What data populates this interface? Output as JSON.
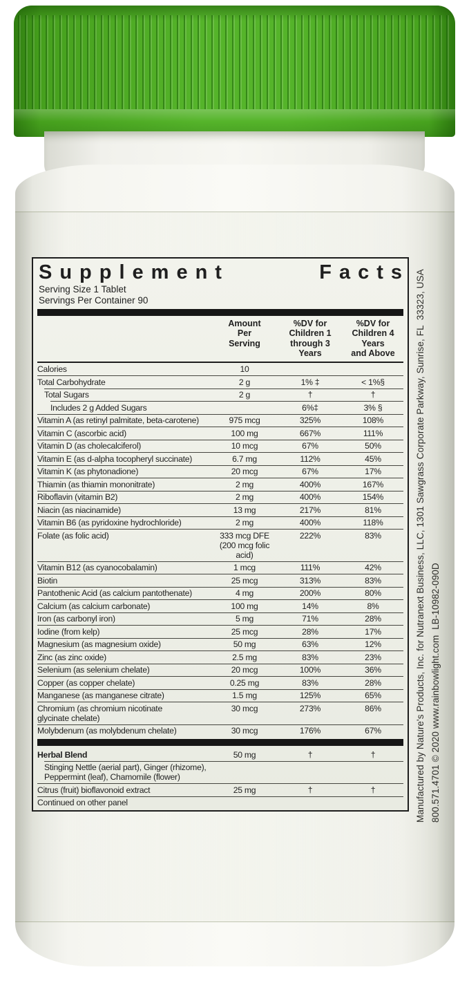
{
  "bottle": {
    "cap_color": "#55b42a",
    "cap_shadow_color": "#2f7d10",
    "body_color": "#f5f5f0",
    "label_tint": "#e9ebe1"
  },
  "panel": {
    "title": "Supplement Facts",
    "title_word1": "Supplement",
    "title_word2": "Facts",
    "serving_size": "Serving Size 1 Tablet",
    "servings_per_container": "Servings Per Container 90",
    "col_amount": "Amount\nPer\nServing",
    "col_dv1": "%DV for\nChildren 1\nthrough 3 Years",
    "col_dv2": "%DV for\nChildren 4 Years\nand Above",
    "rows": [
      {
        "name": "Calories",
        "amount": "10",
        "dv1": "",
        "dv2": "",
        "indent": 0
      },
      {
        "name": "Total Carbohydrate",
        "amount": "2 g",
        "dv1": "1% ‡",
        "dv2": "< 1%§",
        "indent": 0
      },
      {
        "name": "Total Sugars",
        "amount": "2 g",
        "dv1": "†",
        "dv2": "†",
        "indent": 1
      },
      {
        "name": "Includes 2 g Added Sugars",
        "amount": "",
        "dv1": "6%‡",
        "dv2": "3% §",
        "indent": 2
      },
      {
        "name": "Vitamin A (as retinyl palmitate, beta-carotene)",
        "amount": "975 mcg",
        "dv1": "325%",
        "dv2": "108%",
        "indent": 0
      },
      {
        "name": "Vitamin C (ascorbic acid)",
        "amount": "100 mg",
        "dv1": "667%",
        "dv2": "111%",
        "indent": 0
      },
      {
        "name": "Vitamin D (as cholecalciferol)",
        "amount": "10 mcg",
        "dv1": "67%",
        "dv2": "50%",
        "indent": 0
      },
      {
        "name": "Vitamin E (as d-alpha tocopheryl succinate)",
        "amount": "6.7 mg",
        "dv1": "112%",
        "dv2": "45%",
        "indent": 0
      },
      {
        "name": "Vitamin K (as phytonadione)",
        "amount": "20 mcg",
        "dv1": "67%",
        "dv2": "17%",
        "indent": 0
      },
      {
        "name": "Thiamin (as thiamin mononitrate)",
        "amount": "2 mg",
        "dv1": "400%",
        "dv2": "167%",
        "indent": 0
      },
      {
        "name": "Riboflavin (vitamin B2)",
        "amount": "2 mg",
        "dv1": "400%",
        "dv2": "154%",
        "indent": 0
      },
      {
        "name": "Niacin (as niacinamide)",
        "amount": "13 mg",
        "dv1": "217%",
        "dv2": "81%",
        "indent": 0
      },
      {
        "name": "Vitamin B6 (as pyridoxine hydrochloride)",
        "amount": "2 mg",
        "dv1": "400%",
        "dv2": "118%",
        "indent": 0
      },
      {
        "name": "Folate (as folic acid)",
        "amount": "333 mcg DFE\n(200 mcg folic acid)",
        "dv1": "222%",
        "dv2": "83%",
        "indent": 0
      },
      {
        "name": "Vitamin B12 (as cyanocobalamin)",
        "amount": "1 mcg",
        "dv1": "111%",
        "dv2": "42%",
        "indent": 0
      },
      {
        "name": "Biotin",
        "amount": "25 mcg",
        "dv1": "313%",
        "dv2": "83%",
        "indent": 0
      },
      {
        "name": "Pantothenic Acid (as calcium pantothenate)",
        "amount": "4 mg",
        "dv1": "200%",
        "dv2": "80%",
        "indent": 0
      },
      {
        "name": "Calcium (as calcium carbonate)",
        "amount": "100 mg",
        "dv1": "14%",
        "dv2": "8%",
        "indent": 0
      },
      {
        "name": "Iron (as carbonyl iron)",
        "amount": "5 mg",
        "dv1": "71%",
        "dv2": "28%",
        "indent": 0
      },
      {
        "name": "Iodine (from kelp)",
        "amount": "25 mcg",
        "dv1": "28%",
        "dv2": "17%",
        "indent": 0
      },
      {
        "name": "Magnesium (as magnesium oxide)",
        "amount": "50 mg",
        "dv1": "63%",
        "dv2": "12%",
        "indent": 0
      },
      {
        "name": "Zinc (as zinc oxide)",
        "amount": "2.5 mg",
        "dv1": "83%",
        "dv2": "23%",
        "indent": 0
      },
      {
        "name": "Selenium (as selenium chelate)",
        "amount": "20 mcg",
        "dv1": "100%",
        "dv2": "36%",
        "indent": 0
      },
      {
        "name": "Copper (as copper chelate)",
        "amount": "0.25 mg",
        "dv1": "83%",
        "dv2": "28%",
        "indent": 0
      },
      {
        "name": "Manganese (as manganese citrate)",
        "amount": "1.5 mg",
        "dv1": "125%",
        "dv2": "65%",
        "indent": 0
      },
      {
        "name": "Chromium (as chromium nicotinate\nglycinate chelate)",
        "amount": "30 mcg",
        "dv1": "273%",
        "dv2": "86%",
        "indent": 0
      },
      {
        "name": "Molybdenum (as molybdenum chelate)",
        "amount": "30 mcg",
        "dv1": "176%",
        "dv2": "67%",
        "indent": 0
      },
      {
        "name": "Herbal Blend",
        "amount": "50 mg",
        "dv1": "†",
        "dv2": "†",
        "indent": 0,
        "bold": true,
        "bar_above": true
      },
      {
        "name": "Stinging Nettle (aerial part), Ginger (rhizome),\nPeppermint (leaf), Chamomile (flower)",
        "amount": "",
        "dv1": "",
        "dv2": "",
        "indent": 1,
        "wide": true
      },
      {
        "name": "Citrus (fruit) bioflavonoid extract",
        "amount": "25 mg",
        "dv1": "†",
        "dv2": "†",
        "indent": 0
      },
      {
        "name": "Continued on other panel",
        "amount": "",
        "dv1": "",
        "dv2": "",
        "indent": 0,
        "wide": true
      }
    ]
  },
  "side_text": {
    "line1": "Manufactured by Nature's Products, Inc. for Nutranext Business, LLC, 1301 Sawgrass Corporate Parkway, Sunrise, FL  33323, USA",
    "line2": "800.571.4701 © 2020 www.rainbowlight.com  LB-10982-090D"
  }
}
